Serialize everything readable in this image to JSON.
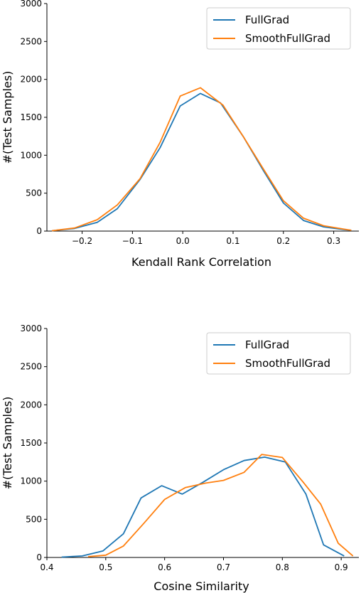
{
  "chart_data": [
    {
      "type": "line",
      "xlabel": "Kendall Rank Correlation",
      "ylabel": "#(Test Samples)",
      "xlim": [
        -0.27,
        0.35
      ],
      "ylim": [
        0,
        3000
      ],
      "xticks": [
        -0.2,
        -0.1,
        0.0,
        0.1,
        0.2,
        0.3
      ],
      "xtick_labels": [
        "−0.2",
        "−0.1",
        "0.0",
        "0.1",
        "0.2",
        "0.3"
      ],
      "yticks": [
        0,
        500,
        1000,
        1500,
        2000,
        2500,
        3000
      ],
      "ytick_labels": [
        "0",
        "500",
        "1000",
        "1500",
        "2000",
        "2500",
        "3000"
      ],
      "grid": false,
      "legend_position": "top-right",
      "series": [
        {
          "name": "FullGrad",
          "color": "#1f77b4",
          "x": [
            -0.26,
            -0.215,
            -0.17,
            -0.13,
            -0.085,
            -0.045,
            -0.005,
            0.035,
            0.075,
            0.12,
            0.16,
            0.2,
            0.24,
            0.28,
            0.32,
            0.335
          ],
          "y": [
            5,
            35,
            115,
            295,
            680,
            1100,
            1650,
            1815,
            1690,
            1250,
            800,
            370,
            140,
            55,
            20,
            10
          ]
        },
        {
          "name": "SmoothFullGrad",
          "color": "#ff7f0e",
          "x": [
            -0.26,
            -0.215,
            -0.17,
            -0.13,
            -0.085,
            -0.045,
            -0.005,
            0.035,
            0.08,
            0.12,
            0.16,
            0.2,
            0.24,
            0.28,
            0.32,
            0.335
          ],
          "y": [
            5,
            40,
            150,
            345,
            690,
            1170,
            1780,
            1890,
            1660,
            1250,
            820,
            400,
            170,
            70,
            25,
            10
          ]
        }
      ]
    },
    {
      "type": "line",
      "xlabel": "Cosine Similarity",
      "ylabel": "#(Test Samples)",
      "xlim": [
        0.4,
        0.93
      ],
      "ylim": [
        0,
        3000
      ],
      "xticks": [
        0.4,
        0.5,
        0.6,
        0.7,
        0.8,
        0.9
      ],
      "xtick_labels": [
        "0.4",
        "0.5",
        "0.6",
        "0.7",
        "0.8",
        "0.9"
      ],
      "yticks": [
        0,
        500,
        1000,
        1500,
        2000,
        2500,
        3000
      ],
      "ytick_labels": [
        "0",
        "500",
        "1000",
        "1500",
        "2000",
        "2500",
        "3000"
      ],
      "grid": false,
      "legend_position": "top-right",
      "series": [
        {
          "name": "FullGrad",
          "color": "#1f77b4",
          "x": [
            0.425,
            0.46,
            0.495,
            0.53,
            0.56,
            0.595,
            0.63,
            0.665,
            0.7,
            0.735,
            0.77,
            0.805,
            0.84,
            0.87,
            0.905
          ],
          "y": [
            5,
            20,
            85,
            310,
            780,
            940,
            830,
            985,
            1150,
            1270,
            1315,
            1250,
            830,
            165,
            20
          ]
        },
        {
          "name": "SmoothFullGrad",
          "color": "#ff7f0e",
          "x": [
            0.47,
            0.5,
            0.53,
            0.565,
            0.6,
            0.635,
            0.67,
            0.7,
            0.735,
            0.765,
            0.8,
            0.835,
            0.865,
            0.895,
            0.92
          ],
          "y": [
            10,
            30,
            150,
            450,
            760,
            915,
            975,
            1010,
            1115,
            1350,
            1310,
            990,
            700,
            185,
            20
          ]
        }
      ]
    }
  ]
}
